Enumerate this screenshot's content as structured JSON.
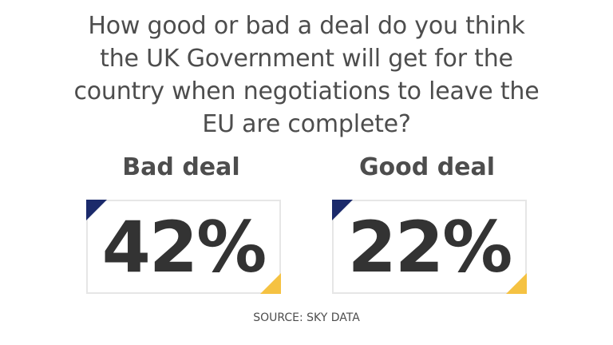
{
  "chart_data": {
    "type": "table",
    "title": "How good or bad a deal do you think the UK Government will get for the country when negotiations to leave the EU are complete?",
    "categories": [
      "Bad deal",
      "Good deal"
    ],
    "values": [
      "42%",
      "22%"
    ],
    "source": "SOURCE: SKY DATA"
  },
  "colors": {
    "navy_corner": "#1b2a6b",
    "yellow_corner": "#f5c242",
    "text": "#4d4d4d"
  }
}
